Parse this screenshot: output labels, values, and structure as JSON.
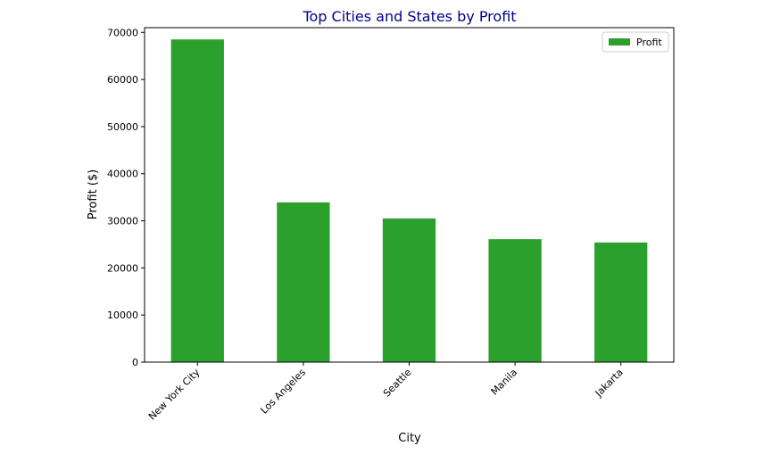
{
  "chart_data": {
    "type": "bar",
    "title": "Top Cities and States by Profit",
    "xlabel": "City",
    "ylabel": "Profit ($)",
    "categories": [
      "New York City",
      "Los Angeles",
      "Seattle",
      "Manila",
      "Jakarta"
    ],
    "series": [
      {
        "name": "Profit",
        "values": [
          68500,
          33900,
          30500,
          26100,
          25400
        ],
        "color": "#2ca02c"
      }
    ],
    "ylim": [
      0,
      71000
    ],
    "yticks": [
      0,
      10000,
      20000,
      30000,
      40000,
      50000,
      60000,
      70000
    ],
    "grid": false,
    "legend": "top-right",
    "title_color": "#00008b"
  }
}
